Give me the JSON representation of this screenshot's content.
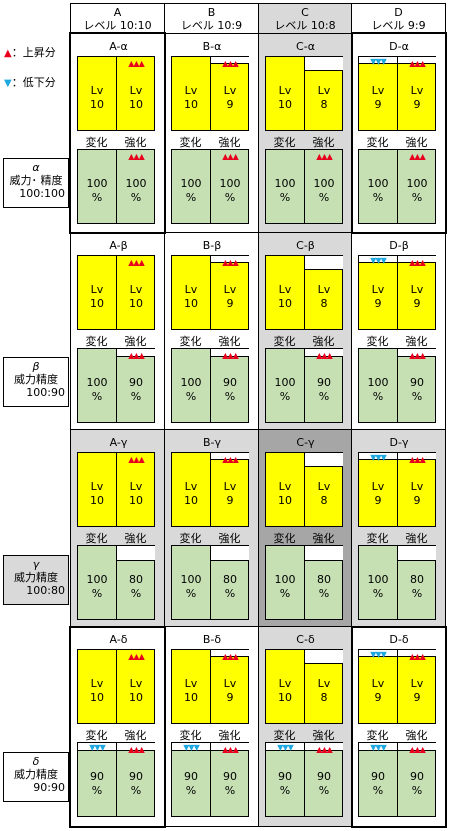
{
  "legend": {
    "up_mark": "▲",
    "up_text": "：上昇分",
    "down_mark": "▼",
    "down_text": "：低下分",
    "up_color": "#e8001c",
    "down_color": "#1fa7e0"
  },
  "columns": [
    {
      "letter": "A",
      "level_text": "レベル 10:10",
      "shaded": false
    },
    {
      "letter": "B",
      "level_text": "レベル 10:9",
      "shaded": false
    },
    {
      "letter": "C",
      "level_text": "レベル 10:8",
      "shaded": true
    },
    {
      "letter": "D",
      "level_text": "レベル 9:9",
      "shaded": false
    }
  ],
  "rows": [
    {
      "greek": "α",
      "label_line": "威力･ 精度",
      "ratio": "100:100",
      "shaded": false,
      "power_pct": 100,
      "accuracy_pct": 100
    },
    {
      "greek": "β",
      "label_line": "威力精度",
      "ratio": "100:90",
      "shaded": false,
      "power_pct": 100,
      "accuracy_pct": 90
    },
    {
      "greek": "γ",
      "label_line": "威力精度",
      "ratio": "100:80",
      "shaded": true,
      "power_pct": 100,
      "accuracy_pct": 80
    },
    {
      "greek": "δ",
      "label_line": "威力精度",
      "ratio": "90:90",
      "shaded": false,
      "power_pct": 90,
      "accuracy_pct": 90
    }
  ],
  "cells": [
    [
      {
        "name": "A-α",
        "lv": [
          "10",
          "10"
        ],
        "lv_up": [
          0,
          3
        ],
        "lv_down": [
          0,
          0
        ],
        "pct": [
          "100",
          "100"
        ],
        "pct_up": [
          0,
          3
        ],
        "pct_down": [
          0,
          0
        ]
      },
      {
        "name": "B-α",
        "lv": [
          "10",
          "9"
        ],
        "lv_up": [
          0,
          3
        ],
        "lv_down": [
          0,
          0
        ],
        "pct": [
          "100",
          "100"
        ],
        "pct_up": [
          0,
          3
        ],
        "pct_down": [
          0,
          0
        ]
      },
      {
        "name": "C-α",
        "lv": [
          "10",
          "8"
        ],
        "lv_up": [
          0,
          0
        ],
        "lv_down": [
          0,
          0
        ],
        "pct": [
          "100",
          "100"
        ],
        "pct_up": [
          0,
          3
        ],
        "pct_down": [
          0,
          0
        ]
      },
      {
        "name": "D-α",
        "lv": [
          "9",
          "9"
        ],
        "lv_up": [
          0,
          3
        ],
        "lv_down": [
          3,
          0
        ],
        "pct": [
          "100",
          "100"
        ],
        "pct_up": [
          0,
          3
        ],
        "pct_down": [
          0,
          0
        ]
      }
    ],
    [
      {
        "name": "A-β",
        "lv": [
          "10",
          "10"
        ],
        "lv_up": [
          0,
          3
        ],
        "lv_down": [
          0,
          0
        ],
        "pct": [
          "100",
          "90"
        ],
        "pct_up": [
          0,
          3
        ],
        "pct_down": [
          0,
          0
        ]
      },
      {
        "name": "B-β",
        "lv": [
          "10",
          "9"
        ],
        "lv_up": [
          0,
          3
        ],
        "lv_down": [
          0,
          0
        ],
        "pct": [
          "100",
          "90"
        ],
        "pct_up": [
          0,
          3
        ],
        "pct_down": [
          0,
          0
        ]
      },
      {
        "name": "C-β",
        "lv": [
          "10",
          "8"
        ],
        "lv_up": [
          0,
          0
        ],
        "lv_down": [
          0,
          0
        ],
        "pct": [
          "100",
          "90"
        ],
        "pct_up": [
          0,
          3
        ],
        "pct_down": [
          0,
          0
        ]
      },
      {
        "name": "D-β",
        "lv": [
          "9",
          "9"
        ],
        "lv_up": [
          0,
          3
        ],
        "lv_down": [
          3,
          0
        ],
        "pct": [
          "100",
          "90"
        ],
        "pct_up": [
          0,
          3
        ],
        "pct_down": [
          0,
          0
        ]
      }
    ],
    [
      {
        "name": "A-γ",
        "lv": [
          "10",
          "10"
        ],
        "lv_up": [
          0,
          3
        ],
        "lv_down": [
          0,
          0
        ],
        "pct": [
          "100",
          "80"
        ],
        "pct_up": [
          0,
          0
        ],
        "pct_down": [
          0,
          0
        ]
      },
      {
        "name": "B-γ",
        "lv": [
          "10",
          "9"
        ],
        "lv_up": [
          0,
          3
        ],
        "lv_down": [
          0,
          0
        ],
        "pct": [
          "100",
          "80"
        ],
        "pct_up": [
          0,
          0
        ],
        "pct_down": [
          0,
          0
        ]
      },
      {
        "name": "C-γ",
        "lv": [
          "10",
          "8"
        ],
        "lv_up": [
          0,
          0
        ],
        "lv_down": [
          0,
          0
        ],
        "pct": [
          "100",
          "80"
        ],
        "pct_up": [
          0,
          0
        ],
        "pct_down": [
          0,
          0
        ]
      },
      {
        "name": "D-γ",
        "lv": [
          "9",
          "9"
        ],
        "lv_up": [
          0,
          3
        ],
        "lv_down": [
          3,
          0
        ],
        "pct": [
          "100",
          "80"
        ],
        "pct_up": [
          0,
          0
        ],
        "pct_down": [
          0,
          0
        ]
      }
    ],
    [
      {
        "name": "A-δ",
        "lv": [
          "10",
          "10"
        ],
        "lv_up": [
          0,
          3
        ],
        "lv_down": [
          0,
          0
        ],
        "pct": [
          "90",
          "90"
        ],
        "pct_up": [
          0,
          3
        ],
        "pct_down": [
          3,
          0
        ]
      },
      {
        "name": "B-δ",
        "lv": [
          "10",
          "9"
        ],
        "lv_up": [
          0,
          3
        ],
        "lv_down": [
          0,
          0
        ],
        "pct": [
          "90",
          "90"
        ],
        "pct_up": [
          0,
          3
        ],
        "pct_down": [
          3,
          0
        ]
      },
      {
        "name": "C-δ",
        "lv": [
          "10",
          "8"
        ],
        "lv_up": [
          0,
          0
        ],
        "lv_down": [
          0,
          0
        ],
        "pct": [
          "90",
          "90"
        ],
        "pct_up": [
          0,
          3
        ],
        "pct_down": [
          3,
          0
        ]
      },
      {
        "name": "D-δ",
        "lv": [
          "9",
          "9"
        ],
        "lv_up": [
          0,
          3
        ],
        "lv_down": [
          3,
          0
        ],
        "pct": [
          "90",
          "90"
        ],
        "pct_up": [
          0,
          3
        ],
        "pct_down": [
          3,
          0
        ]
      }
    ]
  ],
  "labels": {
    "lv": "Lv",
    "percent": "%",
    "change": "変化",
    "boost": "強化"
  },
  "colors": {
    "level_fill": "#ffff00",
    "pct_fill": "#c6e0b4",
    "shade": "#d9d9d9",
    "shade_dark": "#a6a6a6"
  },
  "highlighted_cells": [
    [
      0,
      0
    ],
    [
      0,
      3
    ],
    [
      3,
      0
    ],
    [
      3,
      3
    ]
  ]
}
